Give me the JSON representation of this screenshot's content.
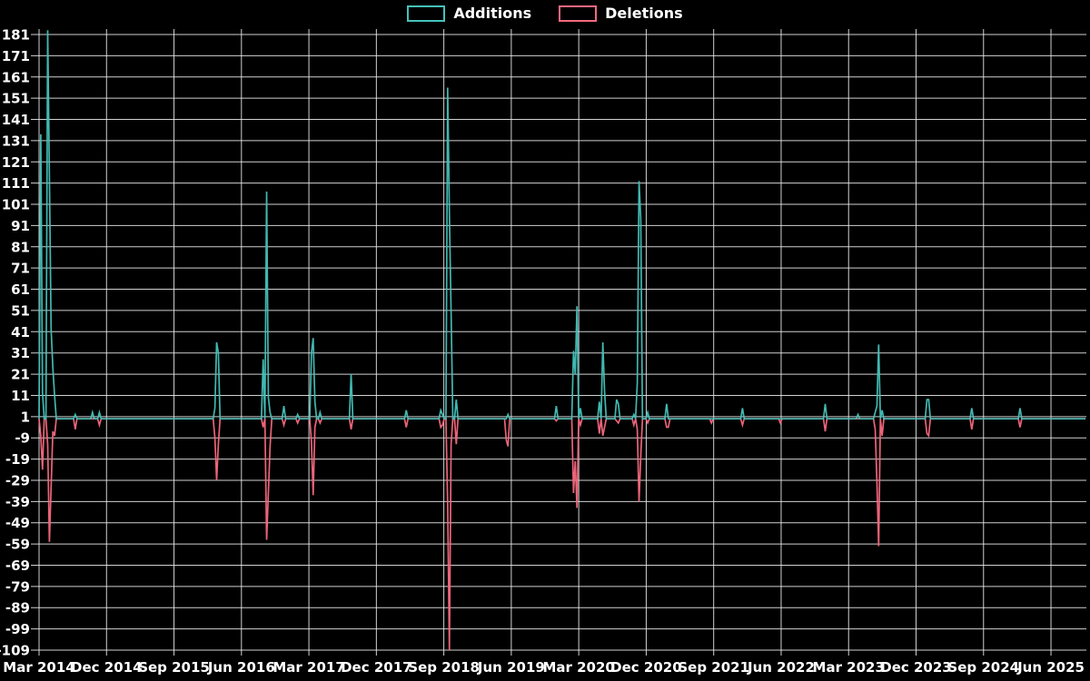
{
  "legend": {
    "additions_label": "Additions",
    "deletions_label": "Deletions"
  },
  "colors": {
    "additions": "#45c2ba",
    "deletions": "#f8697f",
    "grid": "#e8e8e8",
    "text": "#ffffff",
    "background": "#000000"
  },
  "chart_data": {
    "type": "line",
    "title": "",
    "xlabel": "",
    "ylabel": "",
    "legend_position": "top-center",
    "grid": true,
    "ylim": [
      -109,
      181
    ],
    "y_ticks": [
      181,
      171,
      161,
      151,
      141,
      131,
      121,
      111,
      101,
      91,
      81,
      71,
      61,
      51,
      41,
      31,
      21,
      11,
      1,
      -9,
      -19,
      -29,
      -39,
      -49,
      -59,
      -69,
      -79,
      -89,
      -99,
      -109
    ],
    "x_tick_labels": [
      "Mar 2014",
      "Dec 2014",
      "Sep 2015",
      "Jun 2016",
      "Mar 2017",
      "Dec 2017",
      "Sep 2018",
      "Jun 2019",
      "Mar 2020",
      "Dec 2020",
      "Sep 2021",
      "Jun 2022",
      "Mar 2023",
      "Dec 2023",
      "Sep 2024",
      "Jun 2025"
    ],
    "x_unit": "week",
    "weeks_total": 608,
    "weeks_per_tick": 39.13,
    "series": [
      {
        "name": "Additions",
        "points": [
          [
            1,
            134
          ],
          [
            2,
            12
          ],
          [
            5,
            183
          ],
          [
            6,
            114
          ],
          [
            7,
            42
          ],
          [
            8,
            24
          ],
          [
            9,
            11
          ],
          [
            21,
            2
          ],
          [
            31,
            3
          ],
          [
            35,
            3
          ],
          [
            102,
            5
          ],
          [
            103,
            36
          ],
          [
            104,
            31
          ],
          [
            130,
            28
          ],
          [
            132,
            107
          ],
          [
            133,
            10
          ],
          [
            134,
            3
          ],
          [
            142,
            6
          ],
          [
            150,
            2
          ],
          [
            158,
            31
          ],
          [
            159,
            38
          ],
          [
            160,
            8
          ],
          [
            163,
            3
          ],
          [
            181,
            21
          ],
          [
            213,
            4
          ],
          [
            233,
            4
          ],
          [
            234,
            2
          ],
          [
            237,
            156
          ],
          [
            238,
            97
          ],
          [
            239,
            50
          ],
          [
            242,
            9
          ],
          [
            272,
            2
          ],
          [
            300,
            6
          ],
          [
            310,
            32
          ],
          [
            311,
            21
          ],
          [
            312,
            53
          ],
          [
            314,
            5
          ],
          [
            325,
            8
          ],
          [
            327,
            36
          ],
          [
            328,
            13
          ],
          [
            335,
            9
          ],
          [
            336,
            7
          ],
          [
            345,
            2
          ],
          [
            347,
            17
          ],
          [
            348,
            112
          ],
          [
            349,
            94
          ],
          [
            353,
            3
          ],
          [
            364,
            7
          ],
          [
            408,
            5
          ],
          [
            456,
            7
          ],
          [
            475,
            2
          ],
          [
            485,
            3
          ],
          [
            486,
            6
          ],
          [
            487,
            35
          ],
          [
            489,
            4
          ],
          [
            515,
            9
          ],
          [
            516,
            9
          ],
          [
            541,
            5
          ],
          [
            569,
            5
          ]
        ]
      },
      {
        "name": "Deletions",
        "points": [
          [
            1,
            -8
          ],
          [
            2,
            -24
          ],
          [
            5,
            -12
          ],
          [
            6,
            -58
          ],
          [
            7,
            -32
          ],
          [
            8,
            -6
          ],
          [
            9,
            -8
          ],
          [
            21,
            -5
          ],
          [
            35,
            -3
          ],
          [
            102,
            -9
          ],
          [
            103,
            -29
          ],
          [
            104,
            -12
          ],
          [
            130,
            -4
          ],
          [
            132,
            -57
          ],
          [
            133,
            -35
          ],
          [
            134,
            -13
          ],
          [
            142,
            -3
          ],
          [
            150,
            -2
          ],
          [
            158,
            -11
          ],
          [
            159,
            -36
          ],
          [
            160,
            -4
          ],
          [
            163,
            -2
          ],
          [
            181,
            -5
          ],
          [
            213,
            -4
          ],
          [
            233,
            -4
          ],
          [
            234,
            -3
          ],
          [
            237,
            -40
          ],
          [
            238,
            -109
          ],
          [
            239,
            -12
          ],
          [
            242,
            -12
          ],
          [
            271,
            -10
          ],
          [
            272,
            -13
          ],
          [
            300,
            -1
          ],
          [
            310,
            -35
          ],
          [
            311,
            -20
          ],
          [
            312,
            -42
          ],
          [
            314,
            -3
          ],
          [
            325,
            -7
          ],
          [
            327,
            -8
          ],
          [
            328,
            -4
          ],
          [
            335,
            -1
          ],
          [
            336,
            -2
          ],
          [
            345,
            -3
          ],
          [
            347,
            -5
          ],
          [
            348,
            -39
          ],
          [
            349,
            -18
          ],
          [
            353,
            -2
          ],
          [
            364,
            -4
          ],
          [
            365,
            -4
          ],
          [
            390,
            -2
          ],
          [
            408,
            -3
          ],
          [
            430,
            -2
          ],
          [
            456,
            -6
          ],
          [
            485,
            -5
          ],
          [
            486,
            -30
          ],
          [
            487,
            -60
          ],
          [
            489,
            -8
          ],
          [
            515,
            -7
          ],
          [
            516,
            -8
          ],
          [
            541,
            -5
          ],
          [
            569,
            -4
          ]
        ]
      }
    ]
  }
}
